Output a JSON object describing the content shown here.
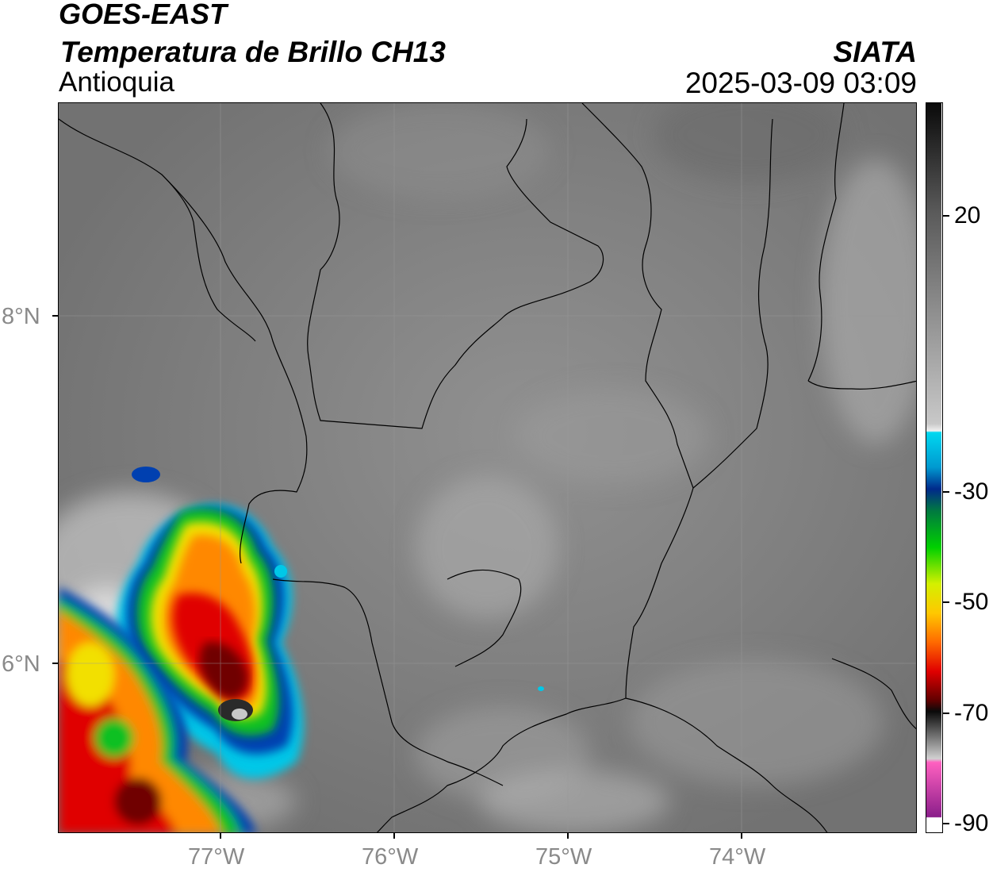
{
  "header": {
    "title_line1": "GOES-EAST",
    "title_line2": "Temperatura de Brillo CH13",
    "title_line3": "Antioquia",
    "agency": "SIATA",
    "datetime": "2025-03-09 03:09"
  },
  "axes": {
    "lat_labels": [
      "8°N",
      "6°N"
    ],
    "lon_labels": [
      "77°W",
      "76°W",
      "75°W",
      "74°W"
    ]
  },
  "colorbar": {
    "labels": [
      "20",
      "-30",
      "-50",
      "-70",
      "-90"
    ],
    "colors": {
      "warm_dark": "#141414",
      "gray": "#8a8a8a",
      "white": "#f5f5f5",
      "cyan": "#00d8f0",
      "blue": "#0033a0",
      "green": "#00c800",
      "yellow": "#f5e400",
      "orange": "#ff8c00",
      "red": "#e60000",
      "dark_red": "#5a0000",
      "purple": "#8e1e8e"
    }
  }
}
